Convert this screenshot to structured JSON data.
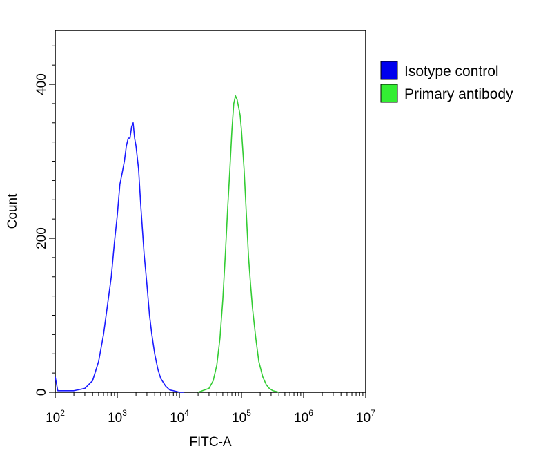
{
  "chart_data": {
    "type": "line",
    "xlabel": "FITC-A",
    "ylabel": "Count",
    "x_scale": "log10",
    "xlim": [
      100,
      10000000
    ],
    "ylim": [
      0,
      470
    ],
    "x_ticks": [
      {
        "base": "10",
        "exp": "2"
      },
      {
        "base": "10",
        "exp": "3"
      },
      {
        "base": "10",
        "exp": "4"
      },
      {
        "base": "10",
        "exp": "5"
      },
      {
        "base": "10",
        "exp": "6"
      },
      {
        "base": "10",
        "exp": "7"
      }
    ],
    "y_ticks": [
      "0",
      "200",
      "400"
    ],
    "y_tick_values": [
      0,
      200,
      400
    ],
    "legend_position": "right",
    "series": [
      {
        "name": "Isotype control",
        "color": "#1a1aff",
        "swatch_color": "#0000ee",
        "x": [
          100,
          110,
          200,
          300,
          400,
          500,
          600,
          700,
          800,
          900,
          1000,
          1100,
          1200,
          1300,
          1400,
          1500,
          1600,
          1700,
          1800,
          1900,
          2000,
          2200,
          2400,
          2700,
          3000,
          3300,
          3600,
          4000,
          4500,
          5000,
          6000,
          7000,
          8000,
          9000,
          10000,
          12000
        ],
        "y": [
          20,
          2,
          2,
          5,
          15,
          40,
          75,
          115,
          150,
          195,
          230,
          270,
          285,
          300,
          320,
          330,
          330,
          345,
          350,
          330,
          320,
          290,
          240,
          180,
          140,
          100,
          75,
          50,
          30,
          18,
          8,
          3,
          2,
          1,
          0,
          0
        ]
      },
      {
        "name": "Primary antibody",
        "color": "#33cc33",
        "swatch_color": "#33ee33",
        "x": [
          20000,
          30000,
          35000,
          40000,
          45000,
          50000,
          55000,
          60000,
          65000,
          70000,
          75000,
          80000,
          85000,
          90000,
          95000,
          100000,
          110000,
          120000,
          130000,
          140000,
          150000,
          170000,
          190000,
          220000,
          250000,
          280000,
          320000,
          360000,
          400000
        ],
        "y": [
          0,
          5,
          15,
          35,
          70,
          120,
          180,
          240,
          290,
          340,
          375,
          385,
          380,
          370,
          360,
          340,
          290,
          230,
          175,
          140,
          110,
          70,
          40,
          20,
          10,
          5,
          2,
          1,
          0
        ]
      }
    ]
  }
}
